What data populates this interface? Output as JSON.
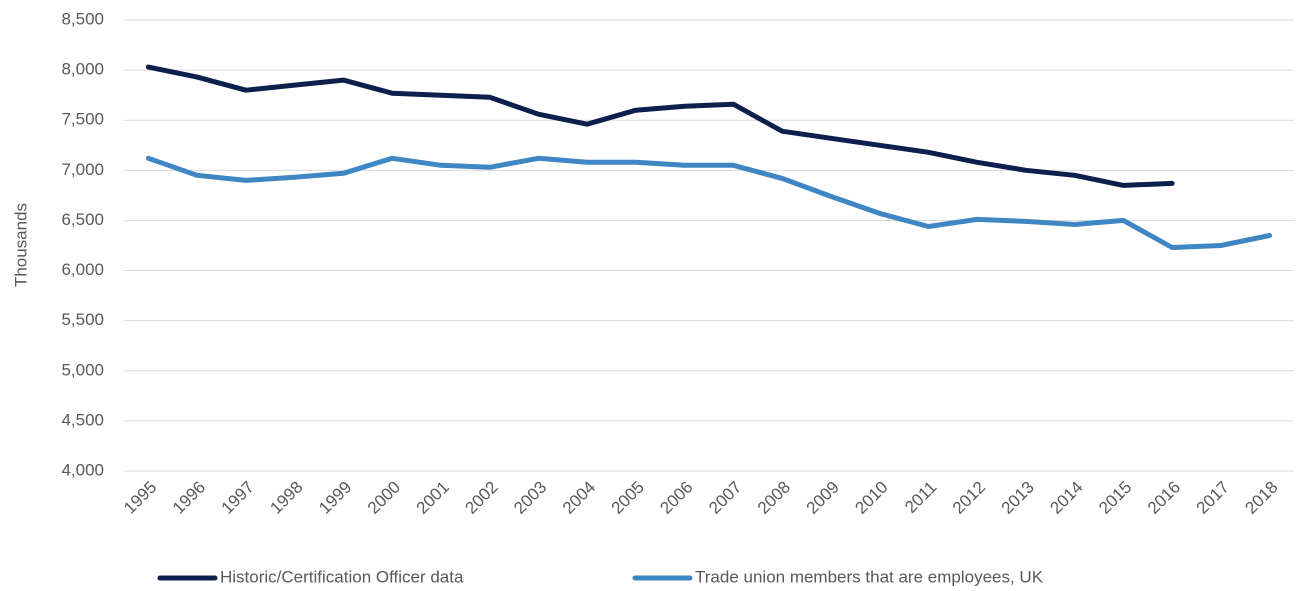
{
  "chart_data": {
    "type": "line",
    "y_label": "Thousands",
    "categories": [
      "1995",
      "1996",
      "1997",
      "1998",
      "1999",
      "2000",
      "2001",
      "2002",
      "2003",
      "2004",
      "2005",
      "2006",
      "2007",
      "2008",
      "2009",
      "2010",
      "2011",
      "2012",
      "2013",
      "2014",
      "2015",
      "2016",
      "2017",
      "2018"
    ],
    "series": [
      {
        "name": "Historic/Certification Officer data",
        "color": "#0c1f4d",
        "values": [
          8030,
          7930,
          7800,
          7850,
          7900,
          7770,
          7750,
          7730,
          7560,
          7460,
          7600,
          7640,
          7660,
          7390,
          7320,
          7250,
          7180,
          7080,
          7000,
          6950,
          6850,
          6870,
          null,
          null
        ]
      },
      {
        "name": "Trade union members that are employees, UK",
        "color": "#3f86c4",
        "values": [
          7120,
          6950,
          6900,
          6930,
          6970,
          7120,
          7050,
          7030,
          7120,
          7080,
          7080,
          7050,
          7050,
          6920,
          6740,
          6570,
          6440,
          6510,
          6490,
          6460,
          6500,
          6230,
          6250,
          6350
        ]
      }
    ],
    "ylim": [
      4000,
      8500
    ],
    "yticks": [
      {
        "value": 4000,
        "label": "4,000"
      },
      {
        "value": 4500,
        "label": "4,500"
      },
      {
        "value": 5000,
        "label": "5,000"
      },
      {
        "value": 5500,
        "label": "5,500"
      },
      {
        "value": 6000,
        "label": "6,000"
      },
      {
        "value": 6500,
        "label": "6,500"
      },
      {
        "value": 7000,
        "label": "7,000"
      },
      {
        "value": 7500,
        "label": "7,500"
      },
      {
        "value": 8000,
        "label": "8,000"
      },
      {
        "value": 8500,
        "label": "8,500"
      }
    ],
    "grid": true,
    "legend": "bottom"
  }
}
